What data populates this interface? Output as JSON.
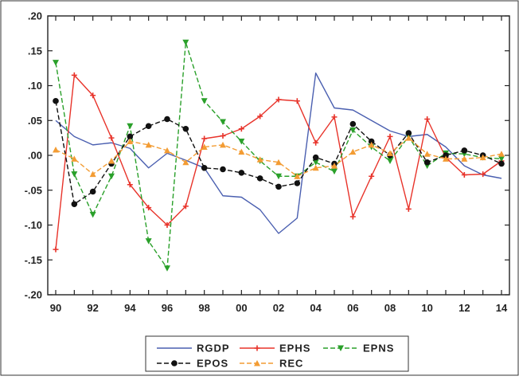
{
  "chart_data": {
    "type": "line",
    "title": "",
    "xlabel": "",
    "ylabel": "",
    "x": [
      1990,
      1991,
      1992,
      1993,
      1994,
      1995,
      1996,
      1997,
      1998,
      1999,
      2000,
      2001,
      2002,
      2003,
      2004,
      2005,
      2006,
      2007,
      2008,
      2009,
      2010,
      2011,
      2012,
      2013,
      2014
    ],
    "xlim": [
      1990,
      2014
    ],
    "ylim": [
      -0.2,
      0.2
    ],
    "x_ticks": [
      {
        "value": 1990,
        "label": "90"
      },
      {
        "value": 1992,
        "label": "92"
      },
      {
        "value": 1994,
        "label": "94"
      },
      {
        "value": 1996,
        "label": "96"
      },
      {
        "value": 1998,
        "label": "98"
      },
      {
        "value": 2000,
        "label": "00"
      },
      {
        "value": 2002,
        "label": "02"
      },
      {
        "value": 2004,
        "label": "04"
      },
      {
        "value": 2006,
        "label": "06"
      },
      {
        "value": 2008,
        "label": "08"
      },
      {
        "value": 2010,
        "label": "10"
      },
      {
        "value": 2012,
        "label": "12"
      },
      {
        "value": 2014,
        "label": "14"
      }
    ],
    "y_ticks": [
      {
        "value": 0.2,
        "label": ".20"
      },
      {
        "value": 0.15,
        "label": ".15"
      },
      {
        "value": 0.1,
        "label": ".10"
      },
      {
        "value": 0.05,
        "label": ".05"
      },
      {
        "value": 0.0,
        "label": ".00"
      },
      {
        "value": -0.05,
        "label": "-.05"
      },
      {
        "value": -0.1,
        "label": "-.10"
      },
      {
        "value": -0.15,
        "label": "-.15"
      },
      {
        "value": -0.2,
        "label": "-.20"
      }
    ],
    "grid": false,
    "legend_position": "bottom",
    "series": [
      {
        "name": "RGDP",
        "color": "#4a5fb0",
        "dash": "solid",
        "marker": "none",
        "values": [
          0.05,
          0.027,
          0.015,
          0.018,
          0.01,
          -0.018,
          0.003,
          -0.007,
          -0.018,
          -0.058,
          -0.06,
          -0.078,
          -0.112,
          -0.09,
          0.118,
          0.068,
          0.065,
          0.05,
          0.035,
          0.027,
          0.03,
          0.012,
          -0.015,
          -0.028,
          -0.033
        ]
      },
      {
        "name": "EPHS",
        "color": "#e8332a",
        "dash": "solid",
        "marker": "plus",
        "values": [
          -0.135,
          0.115,
          0.086,
          0.025,
          -0.042,
          -0.075,
          -0.1,
          -0.073,
          0.024,
          0.028,
          0.038,
          0.056,
          0.08,
          0.078,
          0.018,
          0.055,
          -0.088,
          -0.03,
          0.027,
          -0.077,
          0.052,
          -0.003,
          -0.028,
          -0.027,
          -0.008
        ]
      },
      {
        "name": "EPNS",
        "color": "#2aa02a",
        "dash": "dashed",
        "marker": "triangle-down",
        "values": [
          0.133,
          -0.027,
          -0.085,
          -0.03,
          0.042,
          -0.123,
          -0.162,
          0.162,
          0.078,
          0.048,
          0.02,
          -0.008,
          -0.03,
          -0.03,
          -0.01,
          -0.023,
          0.036,
          0.012,
          -0.008,
          0.027,
          -0.015,
          0.003,
          0.002,
          -0.003,
          -0.005
        ]
      },
      {
        "name": "EPOS",
        "color": "#111111",
        "dash": "dashed",
        "marker": "circle",
        "values": [
          0.078,
          -0.07,
          -0.052,
          -0.012,
          0.027,
          0.042,
          0.052,
          0.038,
          -0.018,
          -0.02,
          -0.025,
          -0.033,
          -0.045,
          -0.04,
          -0.003,
          -0.012,
          0.045,
          0.02,
          0.0,
          0.032,
          -0.01,
          0.0,
          0.007,
          0.0,
          -0.012
        ]
      },
      {
        "name": "REC",
        "color": "#f39c33",
        "dash": "dashed",
        "marker": "triangle-up",
        "values": [
          0.008,
          -0.005,
          -0.027,
          -0.008,
          0.02,
          0.015,
          0.007,
          -0.01,
          0.012,
          0.015,
          0.005,
          -0.006,
          -0.01,
          -0.03,
          -0.018,
          -0.015,
          0.005,
          0.015,
          0.003,
          0.025,
          0.002,
          -0.005,
          -0.005,
          -0.003,
          0.002
        ]
      }
    ]
  }
}
